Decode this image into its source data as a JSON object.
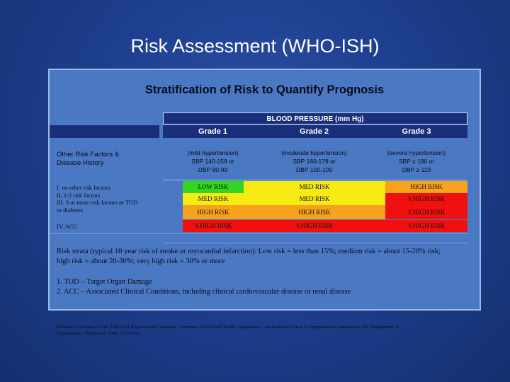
{
  "title": "Risk Assessment (WHO-ISH)",
  "subtitle": "Stratification of Risk to Quantify Prognosis",
  "bp_header": "BLOOD PRESSURE (mm Hg)",
  "grades": [
    "Grade 1",
    "Grade 2",
    "Grade 3"
  ],
  "risk_factors_label_line1": "Other Risk Factors &",
  "risk_factors_label_line2": "Disease History",
  "grade_descriptions": [
    {
      "line1": "(mild hypertension)",
      "line2": "SBP 140-159 or",
      "line3": "DBP 90-99"
    },
    {
      "line1": "(moderate hypertension)",
      "line2": "SBP 160-179 or",
      "line3": "DBP 100-109"
    },
    {
      "line1": "(severe hypertension)",
      "line2": "SBP ≥ 180 or",
      "line3": "DBP ≥ 110"
    }
  ],
  "row_labels": {
    "line1": "I. no other risk factors",
    "line2": "II. 1-2 risk factors",
    "line3": "III. 3 or more risk factors or TOD",
    "line4": "or diabetes",
    "line5": "IV. ACC"
  },
  "risk_matrix": [
    [
      "LOW RISK",
      "MED RISK",
      "HIGH RISK"
    ],
    [
      "MED RISK",
      "MED RISK",
      "V.HIGH RISK"
    ],
    [
      "HIGH RISK",
      "HIGH RISK",
      "V.HIGH RISK"
    ],
    [
      "V.HIGH RISK",
      "V.HIGH RISK",
      "V.HIGH RISK"
    ]
  ],
  "strata_note": "Risk strata (typical 10 year risk of stroke or myocardial infarction): Low risk = less than 15%; medium risk = about 15-20% risk; high risk = about 20-30%; very high risk = 30% or more",
  "footnotes": [
    "1. TOD – Target Organ Damage",
    "2. ACC – Associated Clinical Conditions, including clinical cardiovascular disease or renal disease"
  ],
  "reference": "Reference: Chalmers J et al. WHO-ISH Hypertension Guidelines Committee. 1999 World Health Organization - International Society of Hypertension Guidelines for the Management of Hypertension. J Hypertens. 1999; 17:151-183.",
  "colors": {
    "low": "#33d61e",
    "med": "#f7ea12",
    "high": "#f7a21c",
    "vhigh": "#f01010",
    "header_bg": "#1a2f7a",
    "panel_bg": "#4a78c2"
  }
}
